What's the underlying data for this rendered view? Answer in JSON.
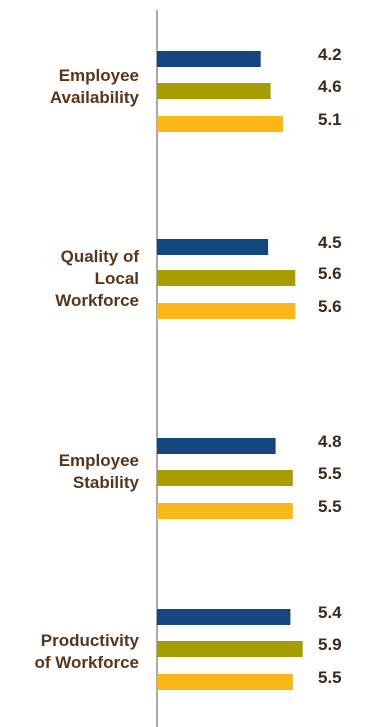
{
  "chart_data": {
    "type": "bar",
    "orientation": "horizontal",
    "categories": [
      "Employee\nAvailability",
      "Quality of\nLocal\nWorkforce",
      "Employee\nStability",
      "Productivity\nof Workforce"
    ],
    "series": [
      {
        "color": "#13477d",
        "values": [
          4.2,
          4.5,
          4.8,
          5.4
        ]
      },
      {
        "color": "#a79c00",
        "values": [
          4.6,
          5.6,
          5.5,
          5.9
        ]
      },
      {
        "color": "#fbb617",
        "values": [
          5.1,
          5.6,
          5.5,
          5.5
        ]
      }
    ],
    "data_labels": [
      [
        "4.2",
        "4.6",
        "5.1"
      ],
      [
        "4.5",
        "5.6",
        "5.6"
      ],
      [
        "4.8",
        "5.5",
        "5.5"
      ],
      [
        "5.4",
        "5.9",
        "5.5"
      ]
    ],
    "xlim": [
      0,
      7
    ],
    "title": "",
    "xlabel": "",
    "ylabel": "",
    "grid": false,
    "legend": "none",
    "category_label_color": "#5a3518",
    "value_label_color": "#3d2a1a",
    "axis_color": "#555555"
  }
}
